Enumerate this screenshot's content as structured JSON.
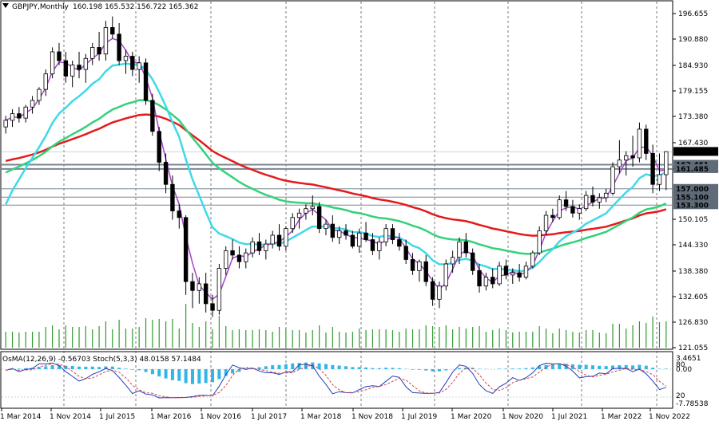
{
  "header": {
    "symbol": "GBPJPY,Monthly",
    "ohlc": "160.198 165.532 156.722 165.362"
  },
  "oscillator": {
    "label": "OsMA(12,26,9) -0.56703  Stoch(5,3,3) 48.0158 57.1484",
    "scale": [
      "3.4651",
      "80",
      "0.00",
      "20",
      "-7.78538"
    ]
  },
  "price_axis": [
    "196.655",
    "190.880",
    "184.930",
    "179.155",
    "173.380",
    "167.430",
    "161.485",
    "150.105",
    "144.330",
    "138.380",
    "132.605",
    "126.830",
    "121.055"
  ],
  "price_tags": [
    {
      "text": "165.362",
      "color": "#000000",
      "text_color": "#ffffff"
    },
    {
      "text": "162.461",
      "color": "#5f6b78",
      "text_color": "#ffffff"
    },
    {
      "text": "161.485",
      "color": "#5f6b78",
      "text_color": "#ffffff"
    },
    {
      "text": "157.000",
      "color": "#5f6b78",
      "text_color": "#ffffff"
    },
    {
      "text": "155.100",
      "color": "#5f6b78",
      "text_color": "#ffffff"
    },
    {
      "text": "153.300",
      "color": "#5f6b78",
      "text_color": "#ffffff"
    }
  ],
  "time_axis": [
    "1 Mar 2014",
    "1 Nov 2014",
    "1 Jul 2015",
    "1 Mar 2016",
    "1 Nov 2016",
    "1 Jul 2017",
    "1 Mar 2018",
    "1 Nov 2018",
    "1 Jul 2019",
    "1 Mar 2020",
    "1 Nov 2020",
    "1 Jul 2021",
    "1 Mar 2022",
    "1 Nov 2022"
  ],
  "colors": {
    "ema200": "#e31a1c",
    "ema144": "#33d17a",
    "ema50": "#3fd9e8",
    "ema12": "#a545c9",
    "volume": "#2e9a2e",
    "osma": "#33b5e5",
    "stoch_main": "#1f3fbf",
    "stoch_signal": "#d94040"
  },
  "chart_data": {
    "type": "candlestick",
    "symbol": "GBPJPY",
    "timeframe": "Monthly",
    "ylim": [
      121.055,
      196.655
    ],
    "last_close": 165.362,
    "levels": [
      162.461,
      161.485,
      157.0,
      155.1,
      153.3
    ],
    "candles_ohlc": [
      [
        171.0,
        173.5,
        169.5,
        172.5
      ],
      [
        172.5,
        175.0,
        171.0,
        174.0
      ],
      [
        174.0,
        175.5,
        172.0,
        173.0
      ],
      [
        173.0,
        176.0,
        172.0,
        175.5
      ],
      [
        175.5,
        178.0,
        174.0,
        177.0
      ],
      [
        177.0,
        180.0,
        176.0,
        179.5
      ],
      [
        179.5,
        184.0,
        178.0,
        183.0
      ],
      [
        183.0,
        189.0,
        182.0,
        188.0
      ],
      [
        188.0,
        190.0,
        185.0,
        186.0
      ],
      [
        186.0,
        188.0,
        181.0,
        182.5
      ],
      [
        182.5,
        186.0,
        180.0,
        185.0
      ],
      [
        185.0,
        188.0,
        182.0,
        184.0
      ],
      [
        184.0,
        187.5,
        181.0,
        186.5
      ],
      [
        186.5,
        190.0,
        185.0,
        189.0
      ],
      [
        189.0,
        192.5,
        186.0,
        187.5
      ],
      [
        187.5,
        195.0,
        186.0,
        193.5
      ],
      [
        193.5,
        196.0,
        191.0,
        192.0
      ],
      [
        192.0,
        194.5,
        185.0,
        186.0
      ],
      [
        186.0,
        188.5,
        183.0,
        187.0
      ],
      [
        187.0,
        188.0,
        182.5,
        184.0
      ],
      [
        184.0,
        187.0,
        181.0,
        185.5
      ],
      [
        185.5,
        186.5,
        176.0,
        177.0
      ],
      [
        177.0,
        178.5,
        169.0,
        170.0
      ],
      [
        170.0,
        171.0,
        161.0,
        163.0
      ],
      [
        163.0,
        165.0,
        156.0,
        158.0
      ],
      [
        158.0,
        160.0,
        150.0,
        152.0
      ],
      [
        152.0,
        153.5,
        148.0,
        150.5
      ],
      [
        150.5,
        151.0,
        133.0,
        136.0
      ],
      [
        136.0,
        138.0,
        130.0,
        134.0
      ],
      [
        134.0,
        137.0,
        131.0,
        135.5
      ],
      [
        135.5,
        138.0,
        129.0,
        131.0
      ],
      [
        131.0,
        133.0,
        128.0,
        129.5
      ],
      [
        129.5,
        140.0,
        128.5,
        139.0
      ],
      [
        139.0,
        144.0,
        137.5,
        143.0
      ],
      [
        143.0,
        145.5,
        141.0,
        142.0
      ],
      [
        142.0,
        144.0,
        139.0,
        140.5
      ],
      [
        140.5,
        143.5,
        139.0,
        142.5
      ],
      [
        142.5,
        146.0,
        141.5,
        145.0
      ],
      [
        145.0,
        147.0,
        142.0,
        143.0
      ],
      [
        143.0,
        145.5,
        141.0,
        144.5
      ],
      [
        144.5,
        147.5,
        143.5,
        146.5
      ],
      [
        146.5,
        149.0,
        143.0,
        144.0
      ],
      [
        144.0,
        148.5,
        143.0,
        148.0
      ],
      [
        148.0,
        151.5,
        147.0,
        150.5
      ],
      [
        150.5,
        152.5,
        148.0,
        151.5
      ],
      [
        151.5,
        153.5,
        150.0,
        152.5
      ],
      [
        152.5,
        155.5,
        151.0,
        153.0
      ],
      [
        153.0,
        154.0,
        147.0,
        148.0
      ],
      [
        148.0,
        150.0,
        146.5,
        149.0
      ],
      [
        149.0,
        151.0,
        145.0,
        146.0
      ],
      [
        146.0,
        148.5,
        144.5,
        147.5
      ],
      [
        147.5,
        149.0,
        145.5,
        146.5
      ],
      [
        146.5,
        147.5,
        143.5,
        144.0
      ],
      [
        144.0,
        148.0,
        142.5,
        147.0
      ],
      [
        147.0,
        149.5,
        145.0,
        145.5
      ],
      [
        145.5,
        147.0,
        142.0,
        143.0
      ],
      [
        143.0,
        146.0,
        141.0,
        145.0
      ],
      [
        145.0,
        149.0,
        144.0,
        148.0
      ],
      [
        148.0,
        149.0,
        144.5,
        145.5
      ],
      [
        145.5,
        147.0,
        143.0,
        144.0
      ],
      [
        144.0,
        145.5,
        140.0,
        141.0
      ],
      [
        141.0,
        142.5,
        137.5,
        138.5
      ],
      [
        138.5,
        141.0,
        136.0,
        140.5
      ],
      [
        140.5,
        142.0,
        135.0,
        136.0
      ],
      [
        136.0,
        137.0,
        130.5,
        132.0
      ],
      [
        132.0,
        136.0,
        130.0,
        135.0
      ],
      [
        135.0,
        141.0,
        134.0,
        140.0
      ],
      [
        140.0,
        143.0,
        138.0,
        141.5
      ],
      [
        141.5,
        146.0,
        140.0,
        145.0
      ],
      [
        145.0,
        147.0,
        141.5,
        142.5
      ],
      [
        142.5,
        143.5,
        137.5,
        138.5
      ],
      [
        138.5,
        140.0,
        133.5,
        135.0
      ],
      [
        135.0,
        138.0,
        134.0,
        137.0
      ],
      [
        137.0,
        139.0,
        134.5,
        135.5
      ],
      [
        135.5,
        140.5,
        135.0,
        139.5
      ],
      [
        139.5,
        141.0,
        136.5,
        137.5
      ],
      [
        137.5,
        139.0,
        135.5,
        138.0
      ],
      [
        138.0,
        140.0,
        136.0,
        137.0
      ],
      [
        137.0,
        140.5,
        136.5,
        139.5
      ],
      [
        139.5,
        143.0,
        139.0,
        142.5
      ],
      [
        142.5,
        148.5,
        142.0,
        147.5
      ],
      [
        147.5,
        152.0,
        146.5,
        151.0
      ],
      [
        151.0,
        152.5,
        149.5,
        150.5
      ],
      [
        150.5,
        155.5,
        150.0,
        154.5
      ],
      [
        154.5,
        156.5,
        152.0,
        153.0
      ],
      [
        153.0,
        154.5,
        150.5,
        151.5
      ],
      [
        151.5,
        153.5,
        150.0,
        152.5
      ],
      [
        152.5,
        156.5,
        152.0,
        155.5
      ],
      [
        155.5,
        157.5,
        153.0,
        154.0
      ],
      [
        154.0,
        156.0,
        152.5,
        155.0
      ],
      [
        155.0,
        157.0,
        154.0,
        156.0
      ],
      [
        156.0,
        163.0,
        155.5,
        162.0
      ],
      [
        162.0,
        168.0,
        160.5,
        163.5
      ],
      [
        163.5,
        165.5,
        160.0,
        164.5
      ],
      [
        164.5,
        169.0,
        162.0,
        164.0
      ],
      [
        164.0,
        172.0,
        163.0,
        170.5
      ],
      [
        170.5,
        171.5,
        163.5,
        165.0
      ],
      [
        165.0,
        167.0,
        156.0,
        158.0
      ],
      [
        158.0,
        165.0,
        156.5,
        160.2
      ],
      [
        160.2,
        165.5,
        156.7,
        165.4
      ]
    ]
  }
}
